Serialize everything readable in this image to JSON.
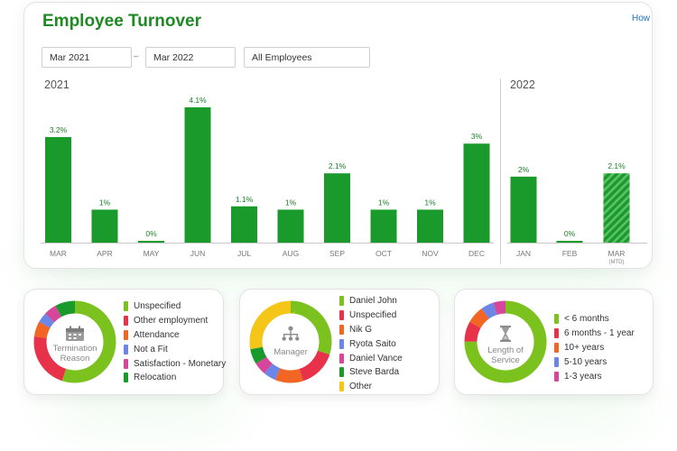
{
  "header": {
    "title": "Employee Turnover",
    "help_link": "How"
  },
  "filters": {
    "start_date": "Mar 2021",
    "separator": "–",
    "end_date": "Mar 2022",
    "employee_filter": "All Employees"
  },
  "colors": {
    "bar": "#1a9a2a",
    "bar_hatch_light": "#5cc26a",
    "title": "#1f8a24",
    "axis": "#c9c9c9"
  },
  "chart_data": {
    "type": "bar",
    "year_labels": [
      "2021",
      "2022"
    ],
    "categories": [
      "MAR",
      "APR",
      "MAY",
      "JUN",
      "JUL",
      "AUG",
      "SEP",
      "OCT",
      "NOV",
      "DEC",
      "JAN",
      "FEB",
      "MAR"
    ],
    "category_sublabels": [
      "",
      "",
      "",
      "",
      "",
      "",
      "",
      "",
      "",
      "",
      "",
      "",
      "(MTD)"
    ],
    "values": [
      3.2,
      1.0,
      0.0,
      4.1,
      1.1,
      1.0,
      2.1,
      1.0,
      1.0,
      3.0,
      2.0,
      0.0,
      2.1
    ],
    "data_labels": [
      "3.2%",
      "1%",
      "0%",
      "4.1%",
      "1.1%",
      "1%",
      "2.1%",
      "1%",
      "1%",
      "3%",
      "2%",
      "0%",
      "2.1%"
    ],
    "year_of_bar": [
      "2021",
      "2021",
      "2021",
      "2021",
      "2021",
      "2021",
      "2021",
      "2021",
      "2021",
      "2021",
      "2022",
      "2022",
      "2022"
    ],
    "hatched": [
      false,
      false,
      false,
      false,
      false,
      false,
      false,
      false,
      false,
      false,
      false,
      false,
      true
    ],
    "ylim": [
      0,
      4.1
    ],
    "grid": false,
    "legend": "none"
  },
  "pies": [
    {
      "center_label": "Termination Reason",
      "icon": "calendar-icon",
      "slices": [
        {
          "label": "Unspecified",
          "value": 55,
          "color": "#7cc21f"
        },
        {
          "label": "Other employment",
          "value": 22,
          "color": "#e8324a"
        },
        {
          "label": "Attendance",
          "value": 6,
          "color": "#f26522"
        },
        {
          "label": "Not a Fit",
          "value": 4,
          "color": "#6b86e6"
        },
        {
          "label": "Satisfaction - Monetary",
          "value": 5,
          "color": "#d6479b"
        },
        {
          "label": "Relocation",
          "value": 8,
          "color": "#1a9a2a"
        }
      ]
    },
    {
      "center_label": "Manager",
      "icon": "org-chart-icon",
      "slices": [
        {
          "label": "Daniel John",
          "value": 30,
          "color": "#7cc21f"
        },
        {
          "label": "Unspecified",
          "value": 15,
          "color": "#e8324a"
        },
        {
          "label": "Nik G",
          "value": 11,
          "color": "#f26522"
        },
        {
          "label": "Ryota Saito",
          "value": 5,
          "color": "#6b86e6"
        },
        {
          "label": "Daniel Vance",
          "value": 5,
          "color": "#d6479b"
        },
        {
          "label": "Steve Barda",
          "value": 6,
          "color": "#1a9a2a"
        },
        {
          "label": "Other",
          "value": 28,
          "color": "#f5c518"
        }
      ]
    },
    {
      "center_label": "Length of Service",
      "icon": "hourglass-icon",
      "slices": [
        {
          "label": "< 6 months",
          "value": 75,
          "color": "#7cc21f"
        },
        {
          "label": "6 months - 1 year",
          "value": 8,
          "color": "#e8324a"
        },
        {
          "label": "10+ years",
          "value": 7,
          "color": "#f26522"
        },
        {
          "label": "5-10 years",
          "value": 5,
          "color": "#6b86e6"
        },
        {
          "label": "1-3 years",
          "value": 5,
          "color": "#d6479b"
        }
      ]
    }
  ]
}
